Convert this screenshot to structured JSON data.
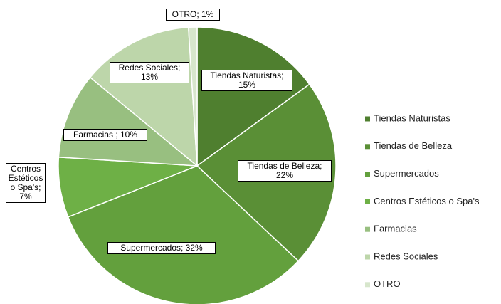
{
  "chart_data": {
    "type": "pie",
    "categories": [
      "Tiendas Naturistas",
      "Tiendas de Belleza",
      "Supermercados",
      "Centros Estéticos o Spa's",
      "Farmacias",
      "Redes Sociales",
      "OTRO"
    ],
    "values": [
      15,
      22,
      32,
      7,
      10,
      13,
      1
    ],
    "value_labels": [
      "Tiendas Naturistas; 15%",
      "Tiendas de Belleza; 22%",
      "Supermercados; 32%",
      "Centros Estéticos o Spa's; 7%",
      "Farmacias ; 10%",
      "Redes Sociales; 13%",
      "OTRO; 1%"
    ],
    "colors": [
      "#4f7f2f",
      "#5a8f36",
      "#63a03d",
      "#6eb046",
      "#98bf80",
      "#bdd6aa",
      "#d7e6cc"
    ],
    "legend": "right"
  }
}
